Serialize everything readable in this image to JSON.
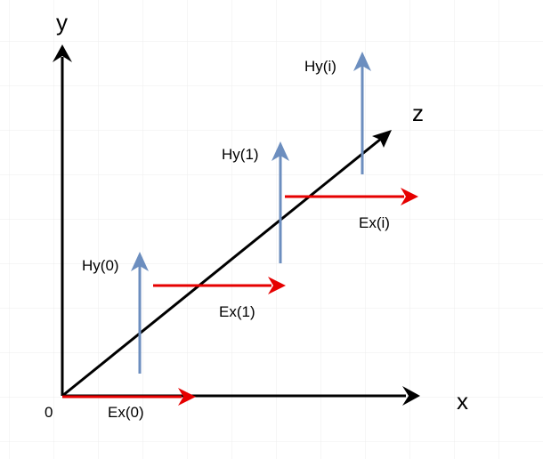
{
  "axes": {
    "y_label": "y",
    "x_label": "x",
    "z_label": "z",
    "origin_label": "0"
  },
  "vectors": {
    "ex0": "Ex(0)",
    "ex1": "Ex(1)",
    "exi": "Ex(i)",
    "hy0": "Hy(0)",
    "hy1": "Hy(1)",
    "hyi": "Hy(i)"
  },
  "colors": {
    "axis": "#000000",
    "ex_arrow": "#e60000",
    "hy_arrow": "#6c8ebf",
    "grid": "#e8e8e8"
  }
}
